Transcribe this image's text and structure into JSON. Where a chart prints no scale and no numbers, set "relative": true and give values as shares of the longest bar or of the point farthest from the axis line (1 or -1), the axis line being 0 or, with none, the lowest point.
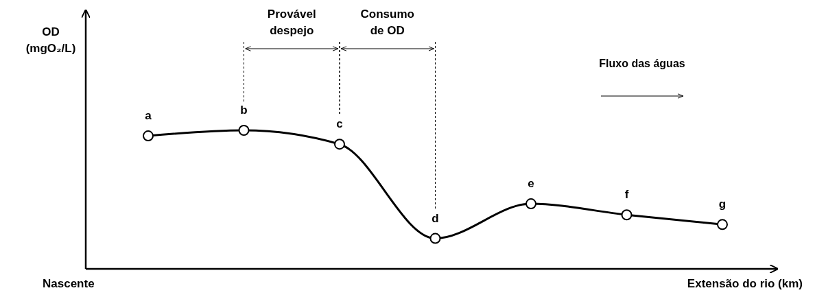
{
  "chart_data": {
    "type": "line",
    "relative": true,
    "categories": [
      "a",
      "b",
      "c",
      "d",
      "e",
      "f",
      "g"
    ],
    "values": [
      0.96,
      1,
      0.9,
      0.22,
      0.47,
      0.39,
      0.32
    ],
    "color": "#000000",
    "marker": "circle",
    "line_style": "solid",
    "tick_labels": false,
    "xlabel": "Extensão do rio (km)",
    "annotations": [
      "Provável despejo",
      "Consumo de OD",
      "Fluxo das águas",
      "Nascente",
      "OD (mgO₂/L)"
    ]
  }
}
